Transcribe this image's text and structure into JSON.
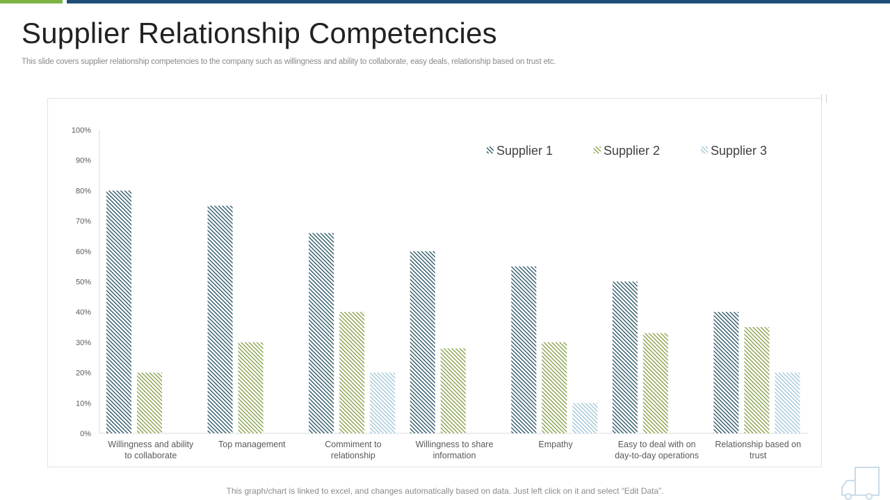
{
  "header": {
    "title": "Supplier Relationship Competencies",
    "subtitle": "This slide covers  supplier relationship competencies to the company such as willingness and ability to collaborate, easy deals, relationship based on trust etc."
  },
  "footer": {
    "note": "This graph/chart is linked to excel, and changes automatically based on data. Just left click on it and select “Edit Data”."
  },
  "colors": {
    "accent_green": "#7cb342",
    "accent_blue": "#1f4e79",
    "supplier1": "#1e4e5e",
    "supplier2": "#7f9a3e",
    "supplier3": "#9cc3d5"
  },
  "chart_data": {
    "type": "bar",
    "title": "",
    "xlabel": "",
    "ylabel": "",
    "ylim": [
      0,
      100
    ],
    "yticks": [
      "0%",
      "10%",
      "20%",
      "30%",
      "40%",
      "50%",
      "60%",
      "70%",
      "80%",
      "90%",
      "100%"
    ],
    "legend_position": "top-right",
    "categories": [
      [
        "Willingness and ability",
        "to collaborate"
      ],
      [
        "Top management"
      ],
      [
        "Commiment to",
        "relationship"
      ],
      [
        "Willingness to share",
        "information"
      ],
      [
        "Empathy"
      ],
      [
        "Easy to deal with on",
        "day-to-day operations"
      ],
      [
        "Relationship based on",
        "trust"
      ]
    ],
    "series": [
      {
        "name": "Supplier 1",
        "values": [
          80,
          75,
          66,
          60,
          55,
          50,
          40
        ]
      },
      {
        "name": "Supplier 2",
        "values": [
          20,
          30,
          40,
          28,
          30,
          33,
          35
        ]
      },
      {
        "name": "Supplier 3",
        "values": [
          0,
          0,
          20,
          0,
          10,
          0,
          20
        ]
      }
    ]
  }
}
